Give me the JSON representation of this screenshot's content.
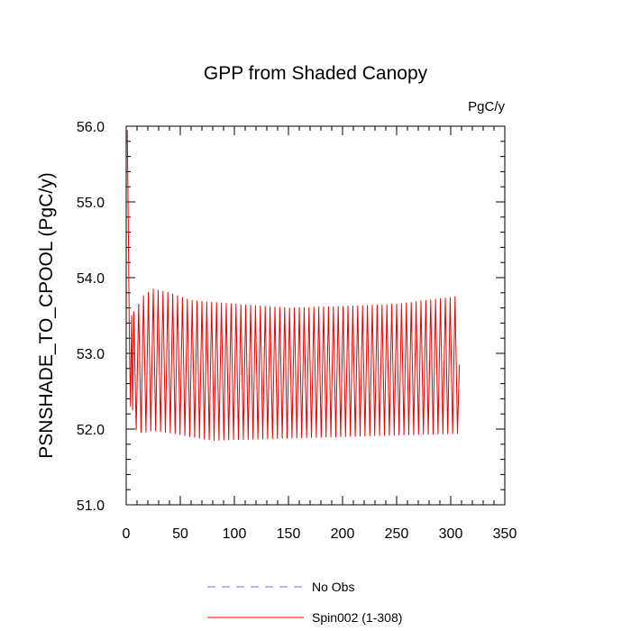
{
  "chart_data": {
    "type": "line",
    "title": "GPP from Shaded Canopy",
    "units": "PgC/y",
    "xlabel": "",
    "ylabel": "PSNSHADE_TO_CPOOL  (PgC/y)",
    "xlim": [
      0,
      350
    ],
    "ylim": [
      51.0,
      56.0
    ],
    "x_ticks": [
      0,
      50,
      100,
      150,
      200,
      250,
      300,
      350
    ],
    "x_tick_labels": [
      "0",
      "50",
      "100",
      "150",
      "200",
      "250",
      "300",
      "350"
    ],
    "y_ticks": [
      51.0,
      52.0,
      53.0,
      54.0,
      55.0,
      56.0
    ],
    "y_tick_labels": [
      "51.0",
      "52.0",
      "53.0",
      "54.0",
      "55.0",
      "56.0"
    ],
    "series": [
      {
        "name": "No Obs",
        "style": "dashed",
        "color": "#6f6ff0",
        "values": []
      },
      {
        "name": "Spin002 (1-308)",
        "style": "solid",
        "color": "#ee0000",
        "x_range": [
          1,
          308
        ],
        "start_values": [
          55.95,
          54.6,
          53.1,
          52.3,
          53.5,
          52.25
        ],
        "seasonal_cycle_length": 4.5,
        "peak_values_by_year": [
          [
            8,
            53.55
          ],
          [
            15,
            53.75
          ],
          [
            25,
            53.85
          ],
          [
            40,
            53.8
          ],
          [
            60,
            53.7
          ],
          [
            100,
            53.65
          ],
          [
            150,
            53.6
          ],
          [
            200,
            53.62
          ],
          [
            250,
            53.65
          ],
          [
            305,
            53.75
          ]
        ],
        "trough_values_by_year": [
          [
            8,
            52.0
          ],
          [
            15,
            51.95
          ],
          [
            25,
            51.98
          ],
          [
            40,
            51.95
          ],
          [
            60,
            51.9
          ],
          [
            80,
            51.85
          ],
          [
            100,
            51.86
          ],
          [
            150,
            51.88
          ],
          [
            200,
            51.9
          ],
          [
            250,
            51.92
          ],
          [
            305,
            51.94
          ]
        ],
        "end_value": 52.85
      }
    ]
  }
}
